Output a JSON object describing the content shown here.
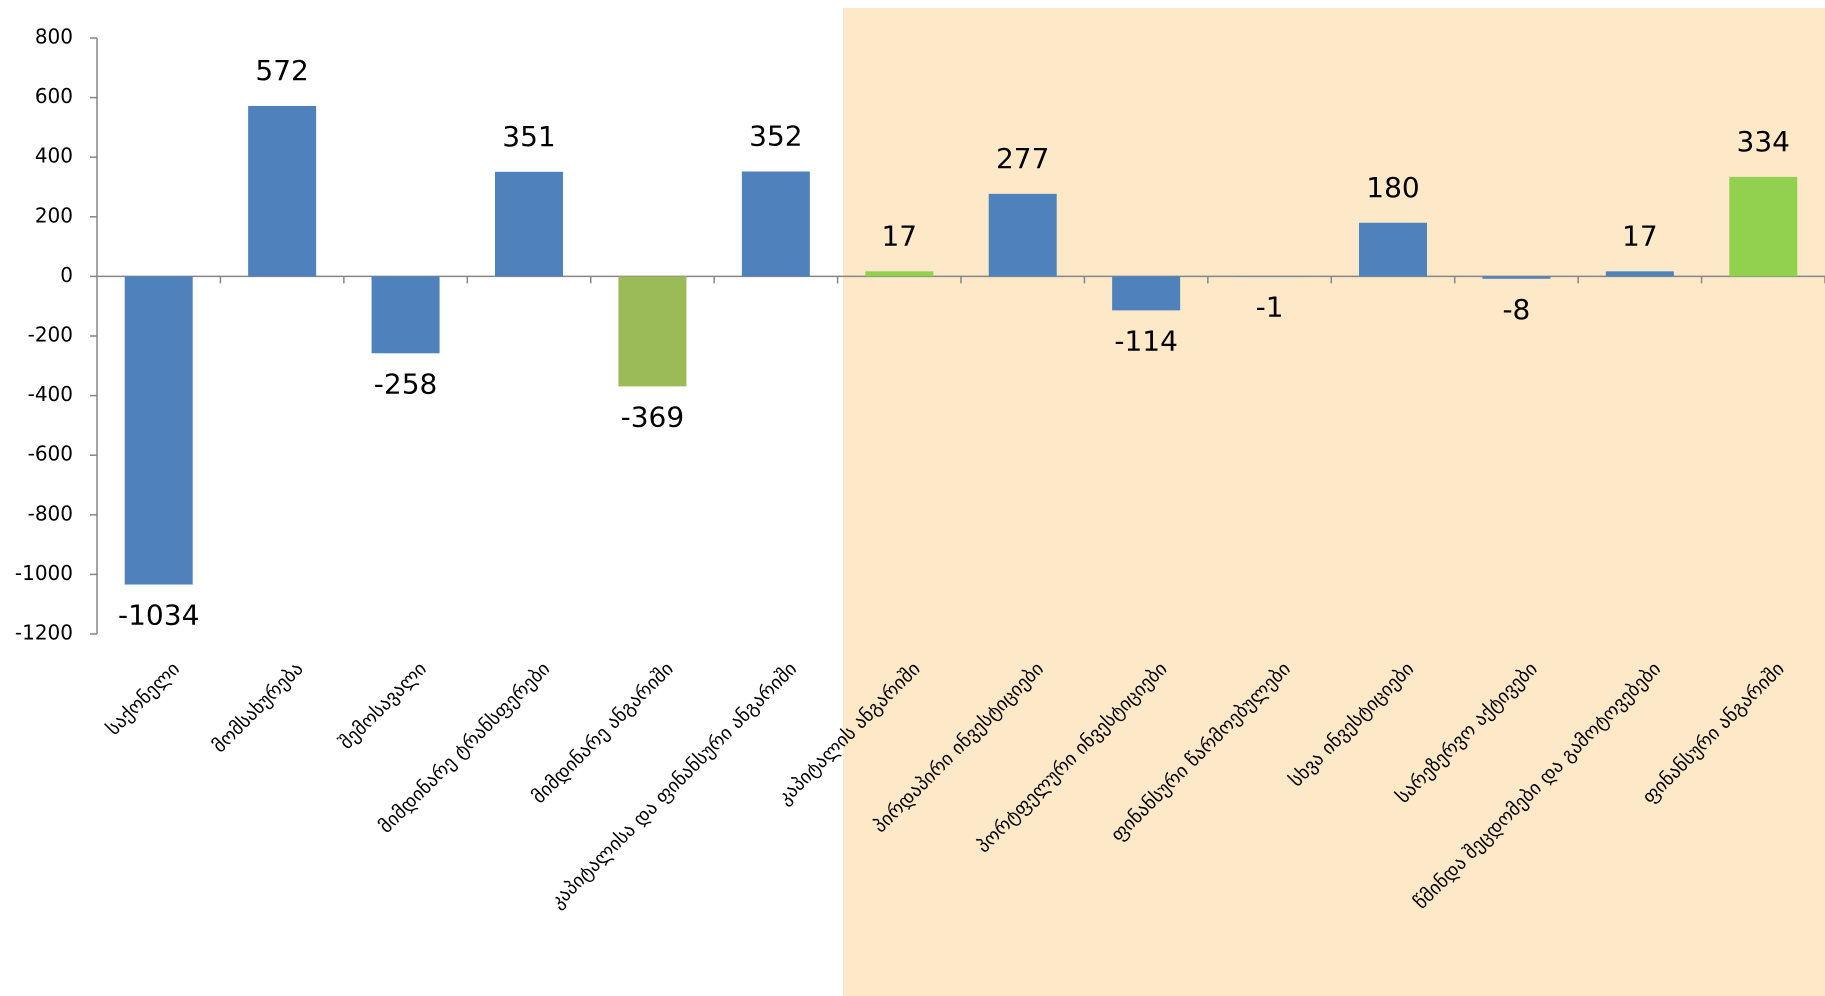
{
  "chart_data": {
    "type": "bar",
    "categories": [
      "საქონელი",
      "მომსახურება",
      "შემოსავალი",
      "მიმდინარე ტრანსფერები",
      "მიმდინარე ანგარიში",
      "კაპიტალისა და ფინანსური ანგარიში",
      "კაპიტალის ანგარიში",
      "პირდაპირი ინვესტიციები",
      "პორტფელური ინვესტიციები",
      "ფინანსური წარმოებულები",
      "სხვა ინვესტიციები",
      "სარეზერვო აქტივები",
      "წმინდა შეცდომები და გამოტოვებები",
      "ფინანსური ანგარიში"
    ],
    "values": [
      -1034,
      572,
      -258,
      351,
      -369,
      352,
      17,
      277,
      -114,
      -1,
      180,
      -8,
      17,
      334
    ],
    "colors": [
      "#4f81bd",
      "#4f81bd",
      "#4f81bd",
      "#4f81bd",
      "#9bbb59",
      "#4f81bd",
      "#92d050",
      "#4f81bd",
      "#4f81bd",
      "#4f81bd",
      "#4f81bd",
      "#4f81bd",
      "#4f81bd",
      "#92d050"
    ],
    "ylim": [
      -1200,
      800
    ],
    "yticks": [
      -1200,
      -1000,
      -800,
      -600,
      -400,
      -200,
      0,
      200,
      400,
      600,
      800
    ]
  }
}
